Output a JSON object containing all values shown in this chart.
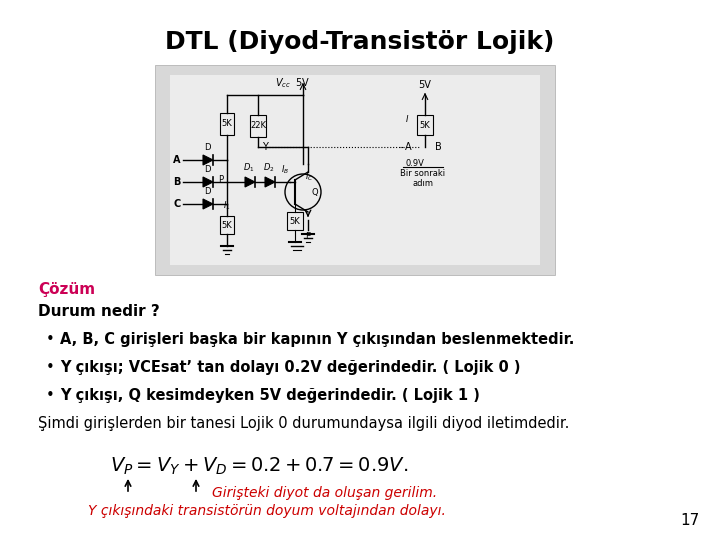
{
  "title": "DTL (Diyod-Transistör Lojik)",
  "title_fontsize": 18,
  "title_color": "#000000",
  "background_color": "#ffffff",
  "cozum_label": "Çözüm",
  "cozum_color": "#cc0055",
  "cozum_fontsize": 11,
  "durum_label": "Durum nedir ?",
  "durum_fontsize": 11,
  "bullet1": "A, B, C girişleri başka bir kapının Y çıkışından beslenmektedir.",
  "bullet2": "Y çıkışı; VCEsat’ tan dolayı 0.2V değerindedir. ( Lojik 0 )",
  "bullet3": "Y çıkışı, Q kesimdeyken 5V değerindedir. ( Lojik 1 )",
  "simdi_line": "Şimdi girişlerden bir tanesi Lojik 0 durumundaysa ilgili diyod iletimdedir.",
  "formula": "$V_P = V_Y + V_D = 0.2 + 0.7 = 0.9V.$",
  "formula_fontsize": 14,
  "red_line1": "Girişteki diyot da oluşan gerilim.",
  "red_line2": "Y çıkışındaki transistörün doyum voltajından dolayı.",
  "red_color": "#cc0000",
  "red_fontsize": 10,
  "bullet_fontsize": 10.5,
  "page_number": "17",
  "circuit_bg": "#e8e8e8",
  "circuit_border": "#aaaaaa"
}
